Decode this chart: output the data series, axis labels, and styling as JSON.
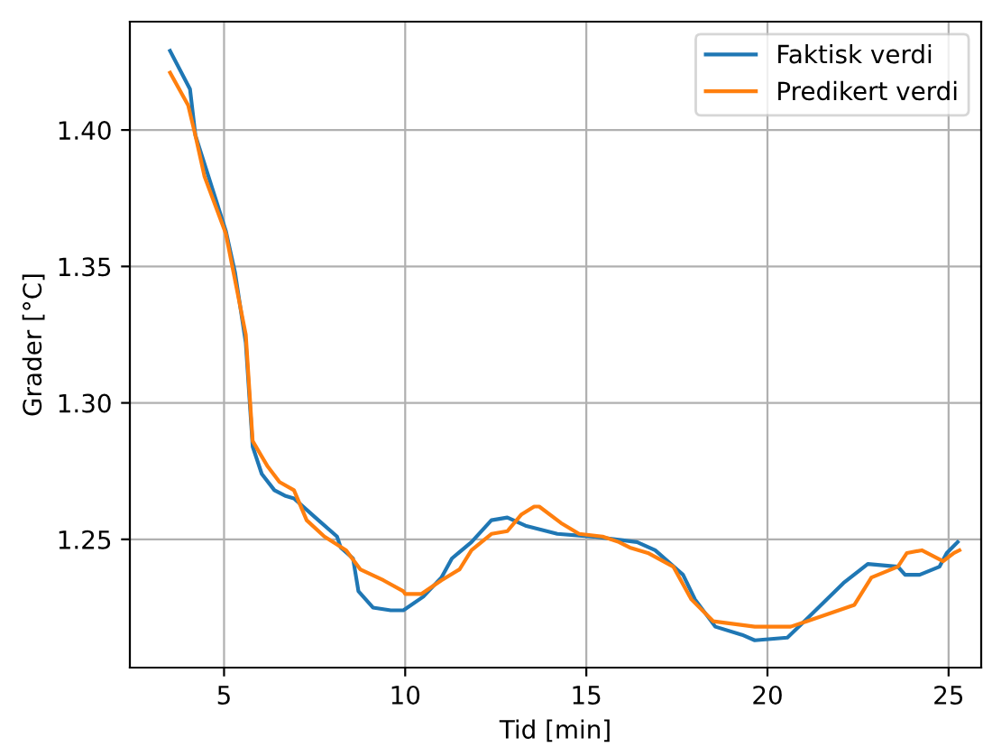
{
  "chart_data": {
    "type": "line",
    "xlabel": "Tid [min]",
    "ylabel": "Grader [°C]",
    "xlim": [
      2.4,
      25.9
    ],
    "ylim": [
      1.203,
      1.4397
    ],
    "xticks": [
      5,
      10,
      15,
      20,
      25
    ],
    "yticks": [
      {
        "value": 1.25,
        "label": "1.25"
      },
      {
        "value": 1.3,
        "label": "1.30"
      },
      {
        "value": 1.35,
        "label": "1.35"
      },
      {
        "value": 1.4,
        "label": "1.40"
      }
    ],
    "grid": true,
    "legend": "top right",
    "series": [
      {
        "name": "Faktisk verdi",
        "color": "#1f77b4",
        "x": [
          3.51,
          4.06,
          4.21,
          5.05,
          5.3,
          5.6,
          5.79,
          6.04,
          6.39,
          6.68,
          6.93,
          7.52,
          8.12,
          8.22,
          8.56,
          8.71,
          9.11,
          9.6,
          9.95,
          10.5,
          11.0,
          11.29,
          11.83,
          12.38,
          12.82,
          13.32,
          14.2,
          15.2,
          16.4,
          16.9,
          17.67,
          18.0,
          18.56,
          19.3,
          19.65,
          20.55,
          21.1,
          22.1,
          22.77,
          23.6,
          23.8,
          24.2,
          24.75,
          24.95,
          25.25
        ],
        "values": [
          1.429,
          1.415,
          1.398,
          1.363,
          1.348,
          1.322,
          1.284,
          1.274,
          1.268,
          1.266,
          1.265,
          1.258,
          1.251,
          1.247,
          1.243,
          1.231,
          1.225,
          1.224,
          1.224,
          1.229,
          1.236,
          1.243,
          1.249,
          1.257,
          1.258,
          1.255,
          1.252,
          1.251,
          1.249,
          1.246,
          1.237,
          1.228,
          1.218,
          1.215,
          1.213,
          1.214,
          1.221,
          1.234,
          1.241,
          1.24,
          1.237,
          1.237,
          1.24,
          1.245,
          1.249
        ]
      },
      {
        "name": "Predikert verdi",
        "color": "#ff7f0e",
        "x": [
          3.51,
          4.01,
          4.21,
          4.46,
          5.05,
          5.6,
          5.79,
          6.19,
          6.53,
          6.93,
          7.28,
          7.77,
          8.37,
          8.76,
          9.4,
          9.95,
          10.0,
          10.45,
          11.0,
          11.5,
          11.83,
          12.38,
          12.82,
          13.2,
          13.56,
          13.7,
          14.3,
          14.8,
          15.45,
          15.9,
          16.2,
          16.7,
          17.4,
          17.9,
          18.5,
          19.65,
          20.64,
          21.1,
          22.4,
          22.87,
          23.6,
          23.85,
          24.26,
          24.85,
          25.15,
          25.3
        ],
        "values": [
          1.421,
          1.409,
          1.398,
          1.383,
          1.362,
          1.325,
          1.286,
          1.277,
          1.271,
          1.268,
          1.257,
          1.251,
          1.246,
          1.239,
          1.235,
          1.231,
          1.23,
          1.23,
          1.235,
          1.239,
          1.246,
          1.252,
          1.253,
          1.259,
          1.262,
          1.262,
          1.256,
          1.252,
          1.251,
          1.249,
          1.247,
          1.245,
          1.24,
          1.228,
          1.22,
          1.218,
          1.218,
          1.22,
          1.226,
          1.236,
          1.24,
          1.245,
          1.246,
          1.242,
          1.245,
          1.246
        ]
      }
    ]
  }
}
